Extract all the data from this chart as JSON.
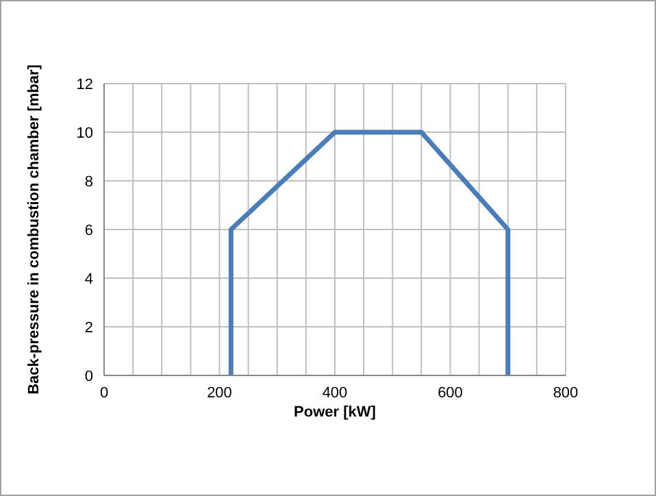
{
  "chart_data": {
    "type": "line",
    "xlabel": "Power [kW]",
    "ylabel": "Back-pressure in combustion chamber [mbar]",
    "x": [
      220,
      220,
      400,
      550,
      700,
      700
    ],
    "series": [
      {
        "color": "#4a7ebb",
        "values": [
          0,
          6,
          10,
          10,
          6,
          0
        ]
      }
    ],
    "xlim": [
      0,
      800
    ],
    "xticks": [
      0,
      {
        "value": 50,
        "label": null
      },
      {
        "value": 100,
        "label": null
      },
      {
        "value": 150,
        "label": null
      },
      200,
      {
        "value": 250,
        "label": null
      },
      {
        "value": 300,
        "label": null
      },
      {
        "value": 350,
        "label": null
      },
      400,
      {
        "value": 450,
        "label": null
      },
      {
        "value": 500,
        "label": null
      },
      {
        "value": 550,
        "label": null
      },
      600,
      {
        "value": 650,
        "label": null
      },
      {
        "value": 700,
        "label": null
      },
      {
        "value": 750,
        "label": null
      },
      800
    ],
    "ylim": [
      0,
      12
    ],
    "yticks": [
      0,
      2,
      4,
      6,
      8,
      10,
      12
    ],
    "grid": true,
    "marker": "none",
    "line_style": "solid"
  }
}
